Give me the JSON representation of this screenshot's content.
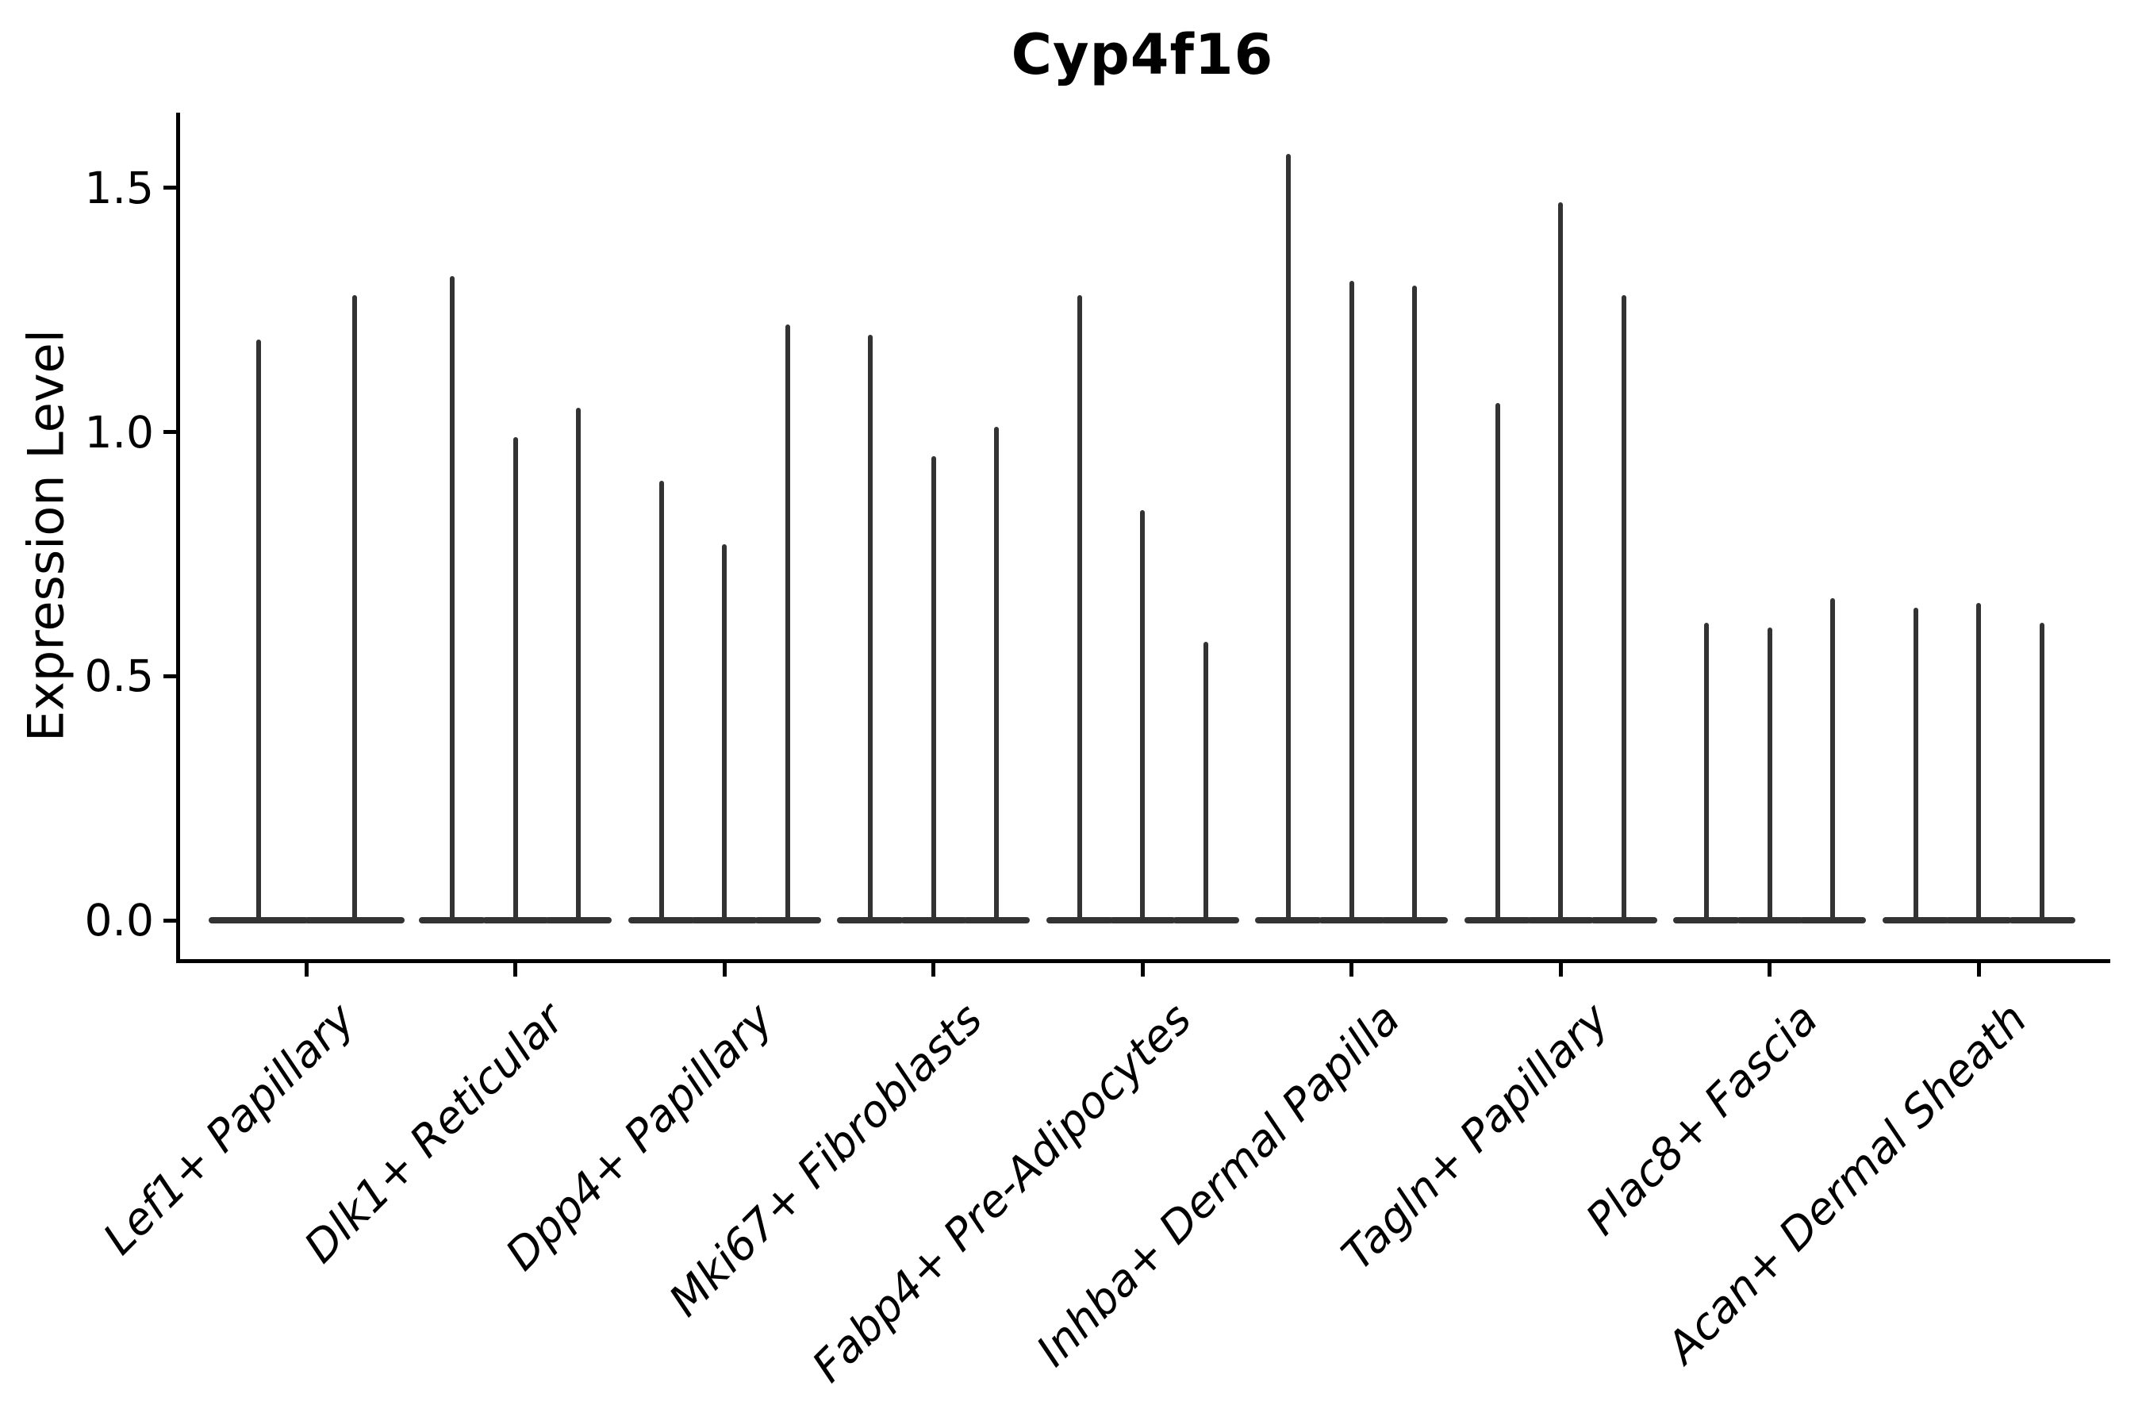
{
  "colors": {
    "background": "#ffffff",
    "violin": "#333333",
    "axis": "#000000",
    "text": "#000000"
  },
  "chart_data": {
    "type": "violin",
    "title": "Cyp4f16",
    "xlabel": "",
    "ylabel": "Expression Level",
    "ytick_labels": [
      "0.0",
      "0.5",
      "1.0",
      "1.5"
    ],
    "ytick_values": [
      0.0,
      0.5,
      1.0,
      1.5
    ],
    "ylim": [
      -0.08,
      1.65
    ],
    "grid": "off",
    "legend": "none",
    "note_shape": "each violin collapses to a flat disk at 0 with a thin spike up to its max expression",
    "categories": [
      "Lef1+ Papillary",
      "Dlk1+ Reticular",
      "Dpp4+ Papillary",
      "Mki67+ Fibroblasts",
      "Fabp4+ Pre-Adipocytes",
      "Inhba+ Dermal Papilla",
      "Tagln+ Papillary",
      "Plac8+ Fascia",
      "Acan+ Dermal Sheath"
    ],
    "groups": [
      {
        "category": "Lef1+ Papillary",
        "violin_max_expression": [
          1.19,
          1.28
        ]
      },
      {
        "category": "Dlk1+ Reticular",
        "violin_max_expression": [
          1.32,
          0.99,
          1.05
        ]
      },
      {
        "category": "Dpp4+ Papillary",
        "violin_max_expression": [
          0.9,
          0.77,
          1.22
        ]
      },
      {
        "category": "Mki67+ Fibroblasts",
        "violin_max_expression": [
          1.2,
          0.95,
          1.01
        ]
      },
      {
        "category": "Fabp4+ Pre-Adipocytes",
        "violin_max_expression": [
          1.28,
          0.84,
          0.57
        ]
      },
      {
        "category": "Inhba+ Dermal Papilla",
        "violin_max_expression": [
          1.57,
          1.31,
          1.3
        ]
      },
      {
        "category": "Tagln+ Papillary",
        "violin_max_expression": [
          1.06,
          1.47,
          1.28
        ]
      },
      {
        "category": "Plac8+ Fascia",
        "violin_max_expression": [
          0.61,
          0.6,
          0.66
        ]
      },
      {
        "category": "Acan+ Dermal Sheath",
        "violin_max_expression": [
          0.64,
          0.65,
          0.61
        ]
      }
    ]
  }
}
